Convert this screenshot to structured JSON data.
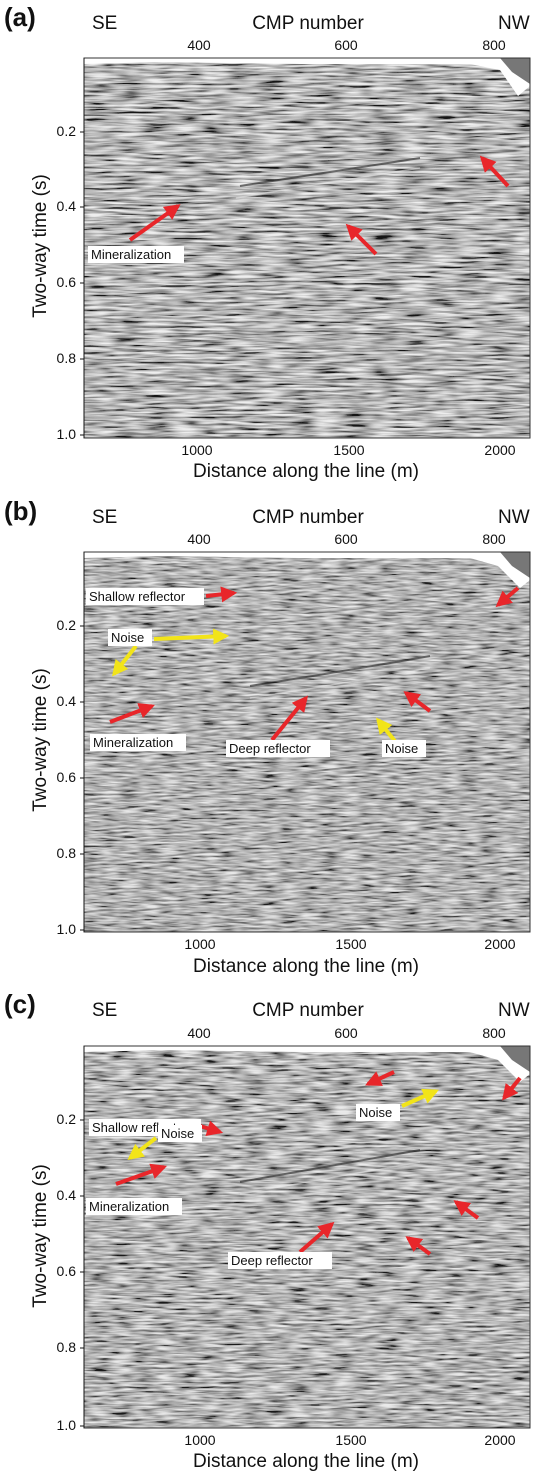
{
  "panels": [
    {
      "label": "(a)",
      "top_left_label": "SE",
      "top_right_label": "NW",
      "top_axis_title": "CMP number",
      "top_ticks": [
        "400",
        "600",
        "800"
      ],
      "y_axis_title": "Two-way time (s)",
      "y_ticks": [
        "0.2",
        "0.4",
        "0.6",
        "0.8",
        "1.0"
      ],
      "x_axis_title": "Distance along the line (m)",
      "x_ticks": [
        "1000",
        "1500",
        "2000"
      ],
      "annotations": [
        "Mineralization"
      ]
    },
    {
      "label": "(b)",
      "top_left_label": "SE",
      "top_right_label": "NW",
      "top_axis_title": "CMP number",
      "top_ticks": [
        "400",
        "600",
        "800"
      ],
      "y_axis_title": "Two-way time (s)",
      "y_ticks": [
        "0.2",
        "0.4",
        "0.6",
        "0.8",
        "1.0"
      ],
      "x_axis_title": "Distance along the line (m)",
      "x_ticks": [
        "1000",
        "1500",
        "2000"
      ],
      "annotations": [
        "Shallow reflector",
        "Noise",
        "Mineralization",
        "Deep reflector",
        "Noise"
      ]
    },
    {
      "label": "(c)",
      "top_left_label": "SE",
      "top_right_label": "NW",
      "top_axis_title": "CMP number",
      "top_ticks": [
        "400",
        "600",
        "800"
      ],
      "y_axis_title": "Two-way time (s)",
      "y_ticks": [
        "0.2",
        "0.4",
        "0.6",
        "0.8",
        "1.0"
      ],
      "x_axis_title": "Distance along the line (m)",
      "x_ticks": [
        "1000",
        "1500",
        "2000"
      ],
      "annotations": [
        "Shallow reflector",
        "Noise",
        "Noise",
        "Mineralization",
        "Deep reflector"
      ]
    }
  ],
  "colors": {
    "arrow_red": "#e8262a",
    "arrow_yellow": "#f2e419",
    "seismic_gray": "#8f8f8f"
  }
}
